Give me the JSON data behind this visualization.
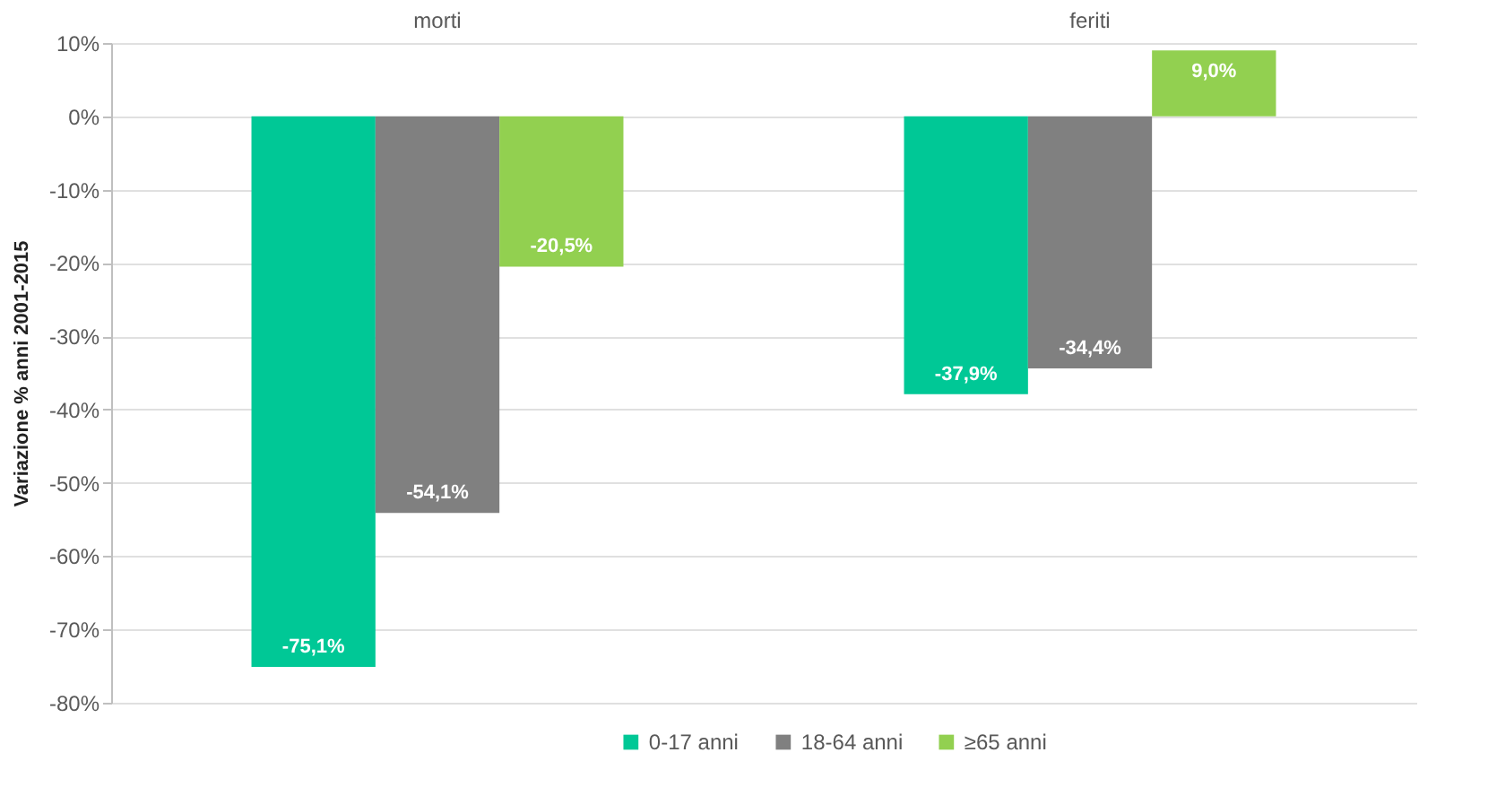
{
  "chart_data": {
    "type": "bar",
    "categories": [
      "morti",
      "feriti"
    ],
    "series": [
      {
        "name": "0-17 anni",
        "color": "#00c896",
        "values": [
          -75.1,
          -37.9
        ],
        "value_labels": [
          "-75,1%",
          "-37,9%"
        ]
      },
      {
        "name": "18-64 anni",
        "color": "#808080",
        "values": [
          -54.1,
          -34.4
        ],
        "value_labels": [
          "-54,1%",
          "-34,4%"
        ]
      },
      {
        "name": "≥65 anni",
        "color": "#92d050",
        "values": [
          -20.5,
          9.0
        ],
        "value_labels": [
          "-20,5%",
          "9,0%"
        ]
      }
    ],
    "ylabel": "Variazione % anni 2001-2015",
    "ylim": [
      -80,
      10
    ],
    "yticks": [
      {
        "value": 10,
        "label": "10%"
      },
      {
        "value": 0,
        "label": "0%"
      },
      {
        "value": -10,
        "label": "-10%"
      },
      {
        "value": -20,
        "label": "-20%"
      },
      {
        "value": -30,
        "label": "-30%"
      },
      {
        "value": -40,
        "label": "-40%"
      },
      {
        "value": -50,
        "label": "-50%"
      },
      {
        "value": -60,
        "label": "-60%"
      },
      {
        "value": -70,
        "label": "-70%"
      },
      {
        "value": -80,
        "label": "-80%"
      }
    ],
    "grid": "y",
    "legend": "bottom"
  }
}
